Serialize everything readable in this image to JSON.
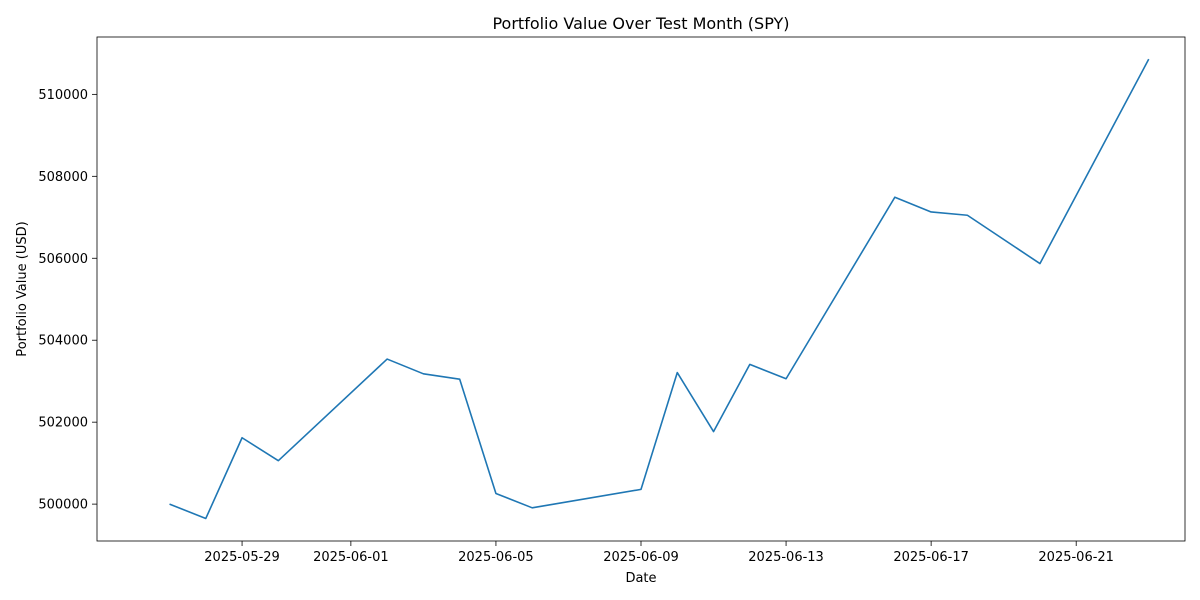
{
  "chart_data": {
    "type": "line",
    "title": "Portfolio Value Over Test Month (SPY)",
    "xlabel": "Date",
    "ylabel": "Portfolio Value (USD)",
    "x_ticks": [
      "2025-05-29",
      "2025-06-01",
      "2025-06-05",
      "2025-06-09",
      "2025-06-13",
      "2025-06-17",
      "2025-06-21"
    ],
    "y_ticks": [
      500000,
      502000,
      504000,
      506000,
      508000,
      510000
    ],
    "y_tick_labels": [
      "500000",
      "502000",
      "504000",
      "506000",
      "508000",
      "510000"
    ],
    "xlim": [
      "2025-05-25",
      "2025-06-24"
    ],
    "ylim": [
      499100,
      511400
    ],
    "grid": false,
    "line_color": "#1f77b4",
    "series": [
      {
        "x": [
          "2025-05-27",
          "2025-05-28",
          "2025-05-29",
          "2025-05-30",
          "2025-06-02",
          "2025-06-03",
          "2025-06-04",
          "2025-06-05",
          "2025-06-06",
          "2025-06-09",
          "2025-06-10",
          "2025-06-11",
          "2025-06-12",
          "2025-06-13",
          "2025-06-16",
          "2025-06-17",
          "2025-06-18",
          "2025-06-20",
          "2025-06-23"
        ],
        "values": [
          500000,
          499650,
          501620,
          501060,
          503540,
          503180,
          503050,
          500260,
          499910,
          500360,
          503210,
          501770,
          503410,
          503060,
          507490,
          507130,
          507050,
          505870,
          510860
        ]
      }
    ]
  }
}
